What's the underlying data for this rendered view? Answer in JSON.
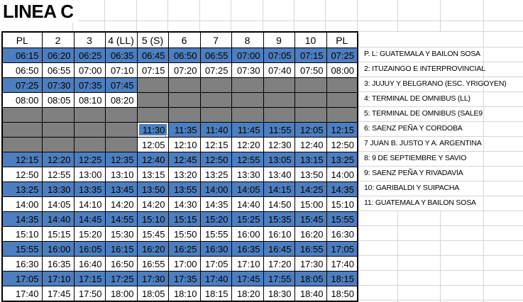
{
  "title": "LINEA C",
  "colors": {
    "blue": "#4d7ebf",
    "gray": "#808080",
    "grid": "#d6d6d6",
    "border": "#000000"
  },
  "table": {
    "headers": [
      "PL",
      "2",
      "3",
      "4 (LL)",
      "5 (S)",
      "6",
      "7",
      "8",
      "9",
      "10",
      "PL"
    ],
    "selected_cell": {
      "row": 5,
      "col": 4,
      "value": "11:30"
    },
    "rows": [
      {
        "style": "blue",
        "cells": [
          "06:15",
          "06:20",
          "06:25",
          "06:35",
          "06:45",
          "06:50",
          "06:55",
          "07:00",
          "07:05",
          "07:15",
          "07:25"
        ]
      },
      {
        "style": "white",
        "cells": [
          "06:50",
          "06:55",
          "07:00",
          "07:10",
          "07:15",
          "07:20",
          "07:25",
          "07:30",
          "07:40",
          "07:50",
          "08:00"
        ]
      },
      {
        "style": "blue",
        "cells": [
          "07:25",
          "07:30",
          "07:35",
          "07:45",
          "",
          "",
          "",
          "",
          "",
          "",
          ""
        ]
      },
      {
        "style": "white",
        "cells": [
          "08:00",
          "08:05",
          "08:10",
          "08:20",
          "",
          "",
          "",
          "",
          "",
          "",
          ""
        ]
      },
      {
        "style": "gray",
        "cells": [
          "",
          "",
          "",
          "",
          "",
          "",
          "",
          "",
          "",
          "",
          ""
        ]
      },
      {
        "style": "blue",
        "cells": [
          "",
          "",
          "",
          "",
          "11:30",
          "11:35",
          "11:40",
          "11:45",
          "11:55",
          "12:05",
          "12:15"
        ]
      },
      {
        "style": "white",
        "cells": [
          "",
          "",
          "",
          "",
          "12:05",
          "12:10",
          "12:15",
          "12:20",
          "12:30",
          "12:40",
          "12:50"
        ]
      },
      {
        "style": "blue",
        "cells": [
          "12:15",
          "12:20",
          "12:25",
          "12:35",
          "12:40",
          "12:45",
          "12:50",
          "12:55",
          "13:05",
          "13:15",
          "13:25"
        ]
      },
      {
        "style": "white",
        "cells": [
          "12:50",
          "12:55",
          "13:00",
          "13:10",
          "13:15",
          "13:20",
          "13:25",
          "13:30",
          "13:40",
          "13:50",
          "14:00"
        ]
      },
      {
        "style": "blue",
        "cells": [
          "13:25",
          "13:30",
          "13:35",
          "13:45",
          "13:50",
          "13:55",
          "14:00",
          "14:05",
          "14:15",
          "14:25",
          "14:35"
        ]
      },
      {
        "style": "white",
        "cells": [
          "14:00",
          "14:05",
          "14:10",
          "14:20",
          "14:20",
          "14:30",
          "14:35",
          "14:40",
          "14:50",
          "15:00",
          "15:10"
        ]
      },
      {
        "style": "blue",
        "cells": [
          "14:35",
          "14:40",
          "14:45",
          "14:55",
          "15:10",
          "15:15",
          "15:20",
          "15:25",
          "15:35",
          "15:45",
          "15:55"
        ]
      },
      {
        "style": "white",
        "cells": [
          "15:10",
          "15:15",
          "15:20",
          "15:30",
          "15:45",
          "15:50",
          "15:55",
          "16:00",
          "16:10",
          "16:20",
          "16:30"
        ]
      },
      {
        "style": "blue",
        "cells": [
          "15:55",
          "16:00",
          "16:05",
          "16:15",
          "16:20",
          "16:25",
          "16:30",
          "16:35",
          "16:45",
          "16:55",
          "17:05"
        ]
      },
      {
        "style": "white",
        "cells": [
          "16:30",
          "16:35",
          "16:40",
          "16:50",
          "16:55",
          "17:00",
          "17:05",
          "17:10",
          "17:20",
          "17:30",
          "17:40"
        ]
      },
      {
        "style": "blue",
        "cells": [
          "17:05",
          "17:10",
          "17:15",
          "17:25",
          "17:30",
          "17:35",
          "17:40",
          "17:45",
          "17:55",
          "18:05",
          "18:15"
        ]
      },
      {
        "style": "white",
        "cells": [
          "17:40",
          "17:45",
          "17:50",
          "18:00",
          "18:05",
          "18:10",
          "18:15",
          "18:20",
          "18:30",
          "18:40",
          "18:50"
        ]
      }
    ]
  },
  "legend": {
    "items": [
      "P. L: GUATEMALA Y BAILON SOSA",
      "2: ITUZAINGO E INTERPROVINCIAL",
      "3: JUJUY Y BELGRANO (ESC. YRIGOYEN)",
      "4: TERMINAL DE OMNIBUS (LL)",
      "5: TERMINAL DE OMNIBUS (SALE9",
      "6: SAENZ PEÑA Y CORDOBA",
      "7 JUAN B. JUSTO Y A. ARGENTINA",
      "8: 9 DE SEPTIEMBRE Y SAVIO",
      "9: SAENZ PEÑA Y RIVADAVIA",
      "10: GARIBALDI Y SUIPACHA",
      "11: GUATEMALA Y BAILON SOSA"
    ]
  }
}
